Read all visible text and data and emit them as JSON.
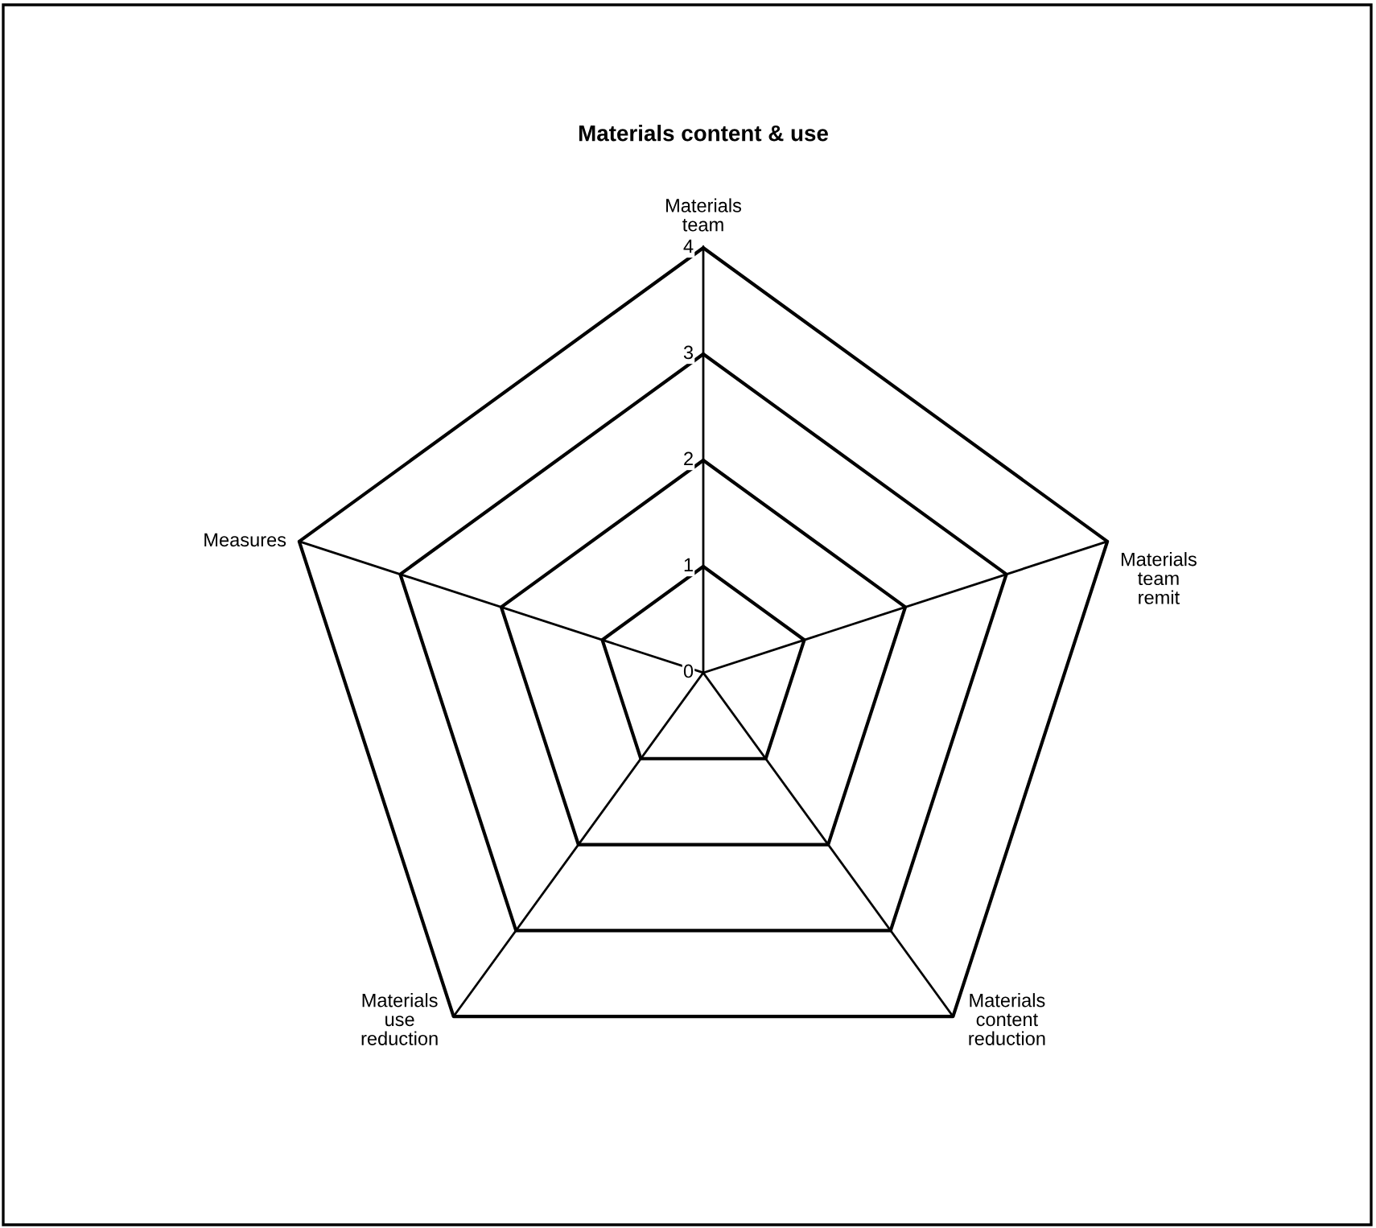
{
  "chart_data": {
    "type": "radar",
    "title": "Materials content & use",
    "categories": [
      "Materials team",
      "Materials team remit",
      "Materials content reduction",
      "Materials use reduction",
      "Measures"
    ],
    "ylim": [
      0,
      4
    ],
    "yticks": [
      0,
      1,
      2,
      3,
      4
    ],
    "grid": true
  }
}
